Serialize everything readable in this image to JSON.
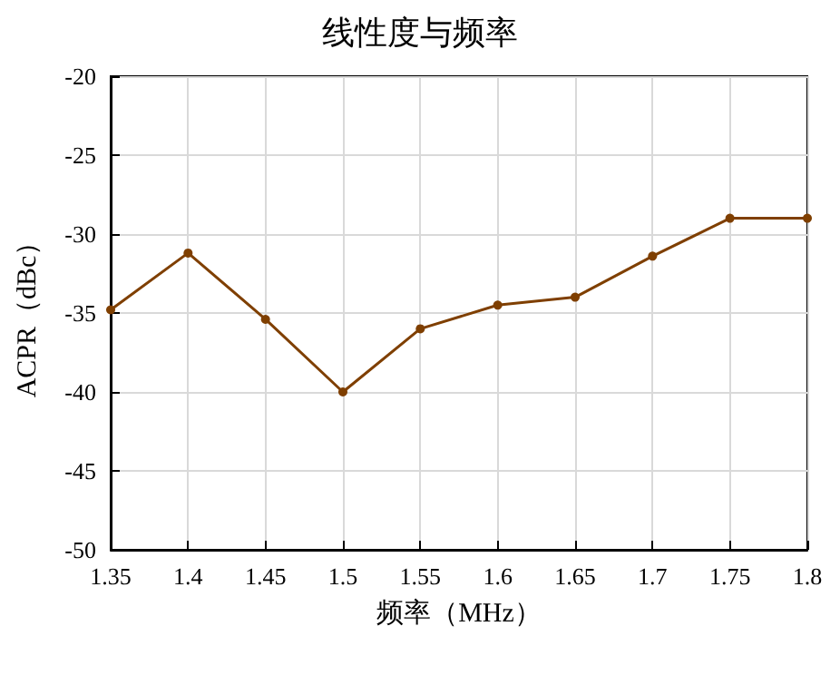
{
  "chart_data": {
    "type": "line",
    "title": "线性度与频率",
    "xlabel": "频率（MHz）",
    "ylabel": "ACPR（dBc）",
    "x": [
      1.35,
      1.4,
      1.45,
      1.5,
      1.55,
      1.6,
      1.65,
      1.7,
      1.75,
      1.8
    ],
    "series": [
      {
        "color": "#7f3f00",
        "values": [
          -34.8,
          -31.2,
          -35.4,
          -40.0,
          -36.0,
          -34.5,
          -34.0,
          -31.4,
          -29.0,
          -29.0
        ]
      }
    ],
    "xlim": [
      1.35,
      1.8
    ],
    "xticks": [
      1.35,
      1.4,
      1.45,
      1.5,
      1.55,
      1.6,
      1.65,
      1.7,
      1.75,
      1.8
    ],
    "ylim": [
      -50,
      -20
    ],
    "yticks": [
      -50,
      -45,
      -40,
      -35,
      -30,
      -25,
      -20
    ],
    "grid": true,
    "marker": "circle",
    "line_style": "solid"
  }
}
